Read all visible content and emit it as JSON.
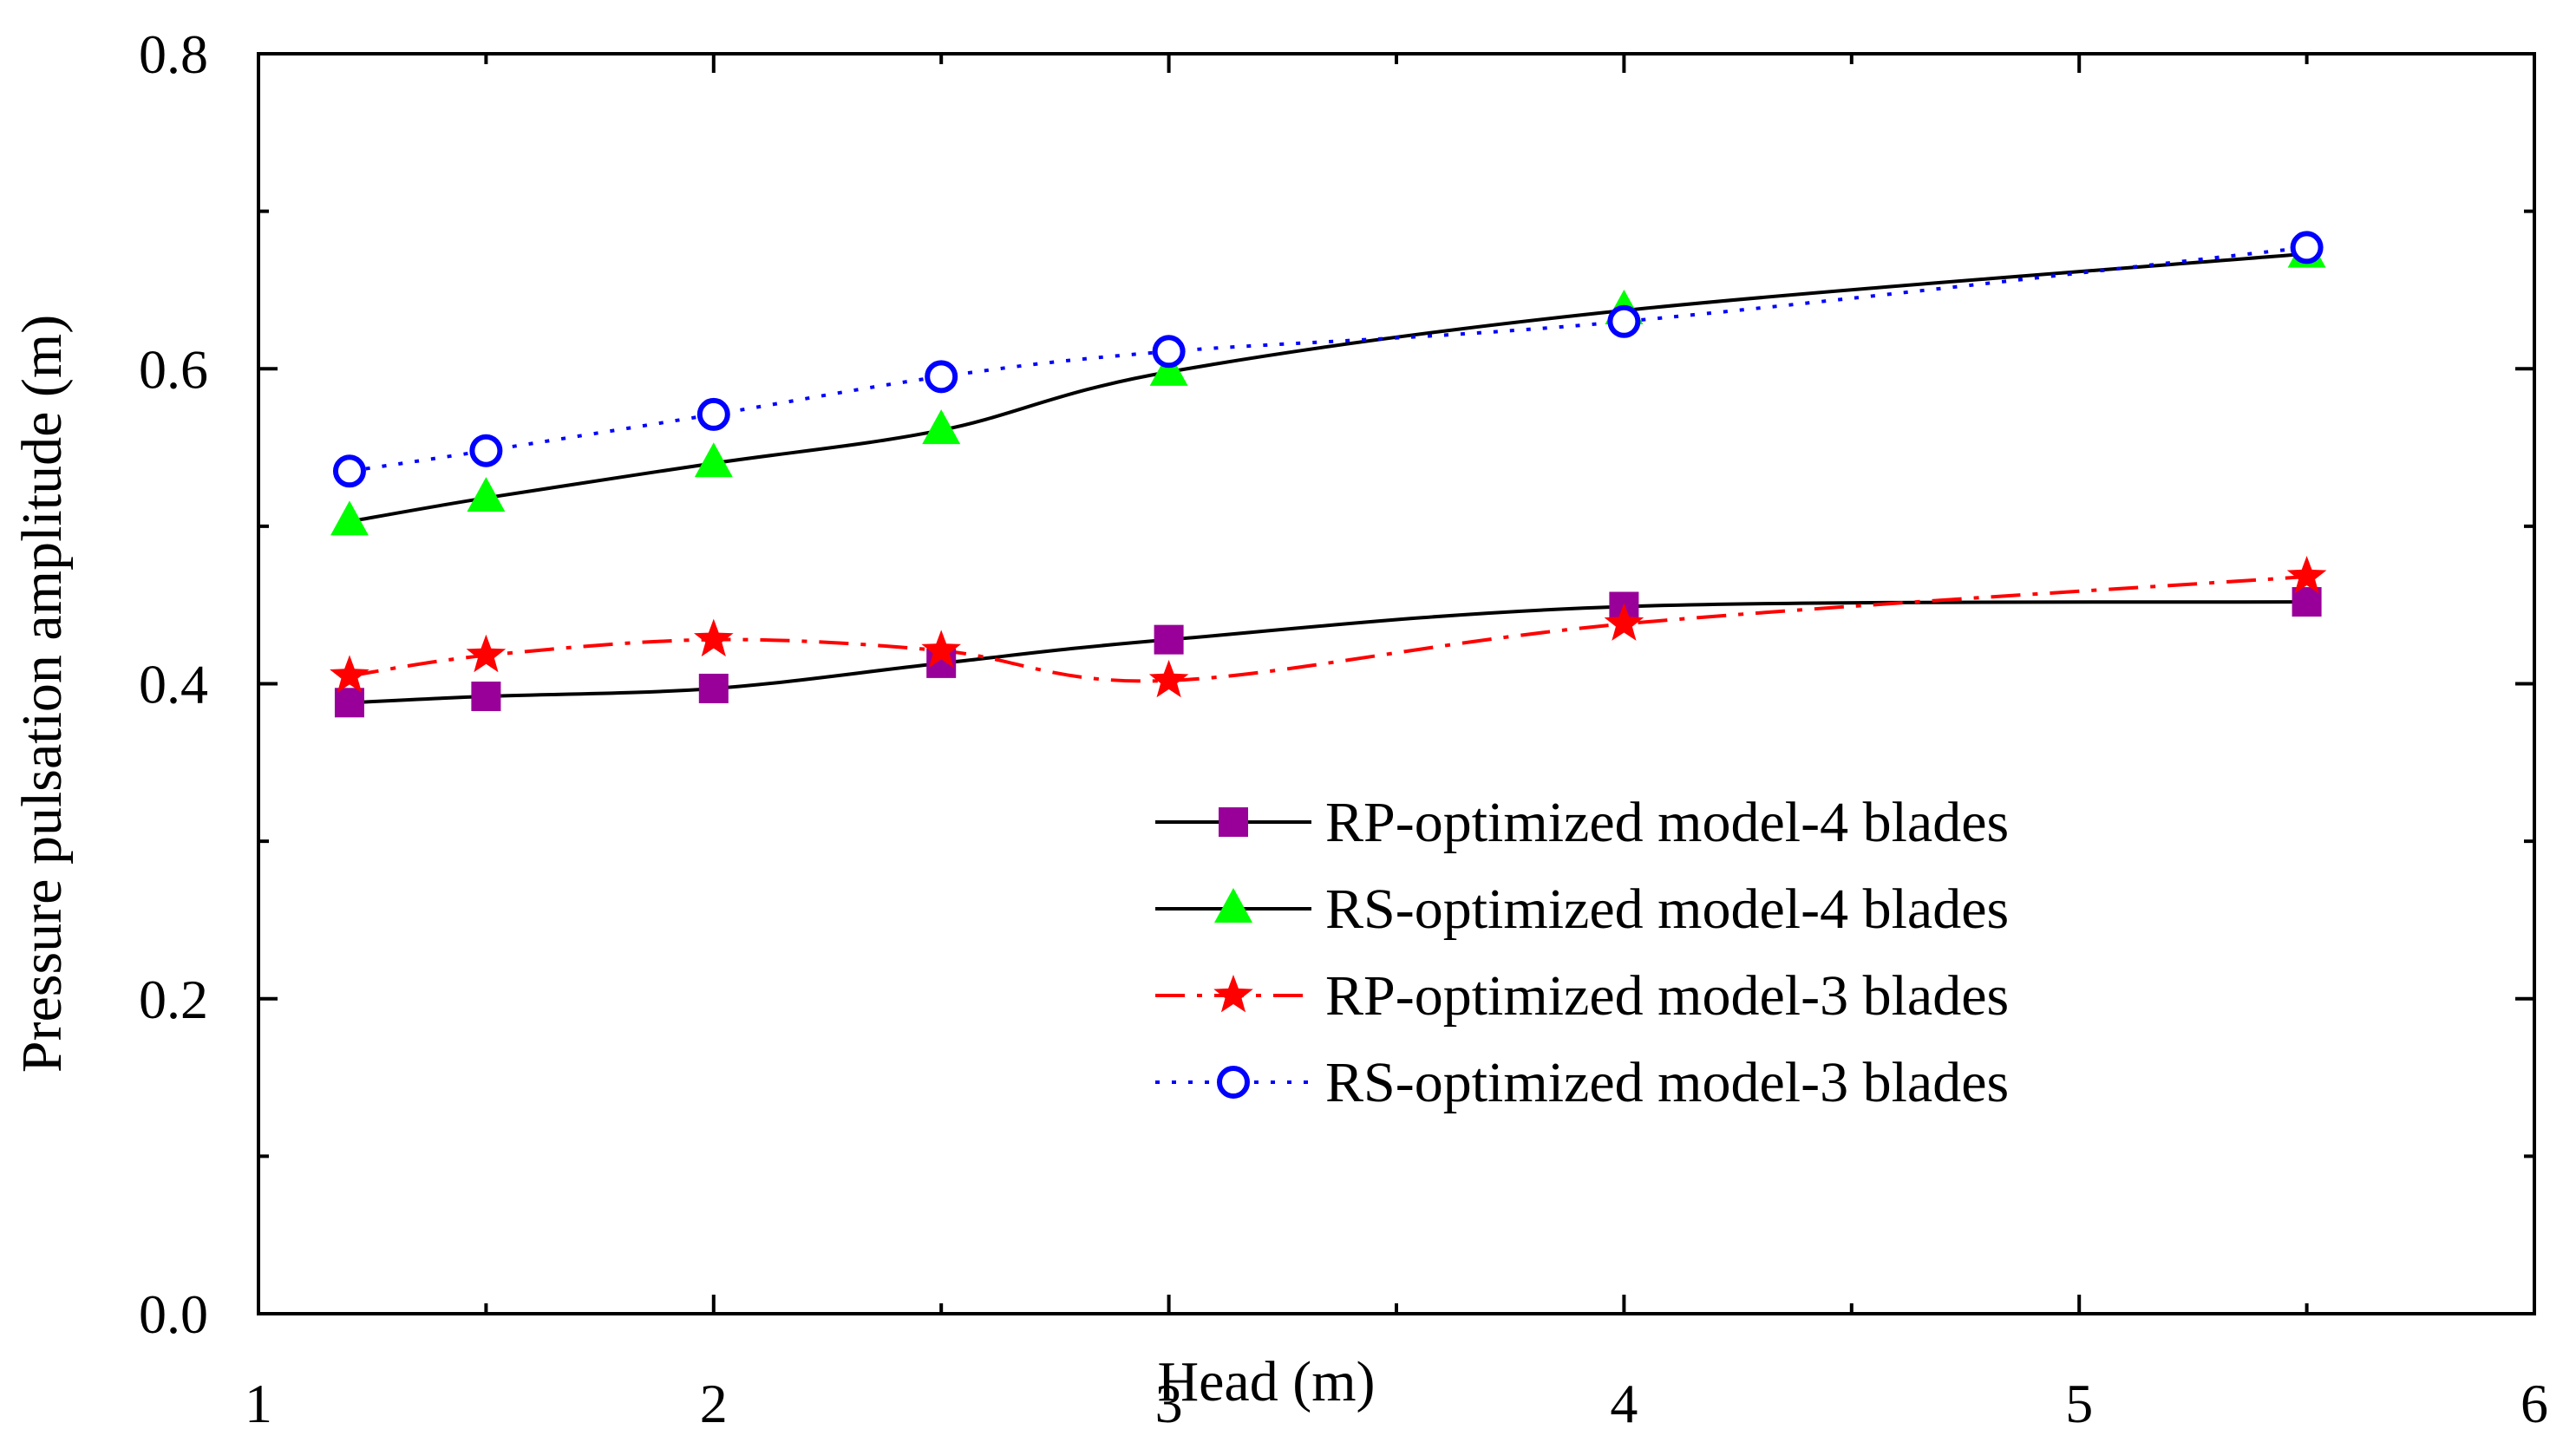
{
  "chart_data": {
    "type": "line",
    "title": "",
    "xlabel": "Head (m)",
    "ylabel": "Pressure pulsation amplitude (m)",
    "xlim": [
      1,
      6
    ],
    "ylim": [
      0.0,
      0.8
    ],
    "x_ticks": [
      "1",
      "2",
      "3",
      "4",
      "5",
      "6"
    ],
    "y_ticks": [
      "0.0",
      "0.2",
      "0.4",
      "0.6",
      "0.8"
    ],
    "grid": false,
    "legend_position": "center-right",
    "x": [
      1.2,
      1.5,
      2.0,
      2.5,
      3.0,
      4.0,
      5.5
    ],
    "series": [
      {
        "name": "RP-optimized model-4 blades",
        "values": [
          0.388,
          0.392,
          0.397,
          0.413,
          0.428,
          0.449,
          0.452
        ],
        "color": "#000000",
        "marker_color": "#990099",
        "marker": "square",
        "line_style": "solid"
      },
      {
        "name": "RS-optimized model-4 blades",
        "values": [
          0.503,
          0.518,
          0.54,
          0.561,
          0.598,
          0.637,
          0.673
        ],
        "color": "#000000",
        "marker_color": "#00ff00",
        "marker": "triangle",
        "line_style": "solid"
      },
      {
        "name": "RP-optimized model-3 blades",
        "values": [
          0.405,
          0.418,
          0.428,
          0.421,
          0.402,
          0.438,
          0.468
        ],
        "color": "#ff0000",
        "marker_color": "#ff0000",
        "marker": "star",
        "line_style": "dashdot"
      },
      {
        "name": "RS-optimized model-3 blades",
        "values": [
          0.535,
          0.548,
          0.571,
          0.595,
          0.611,
          0.63,
          0.677
        ],
        "color": "#0000ff",
        "marker_color": "#0000ff",
        "marker": "circle",
        "line_style": "dotted"
      }
    ]
  }
}
